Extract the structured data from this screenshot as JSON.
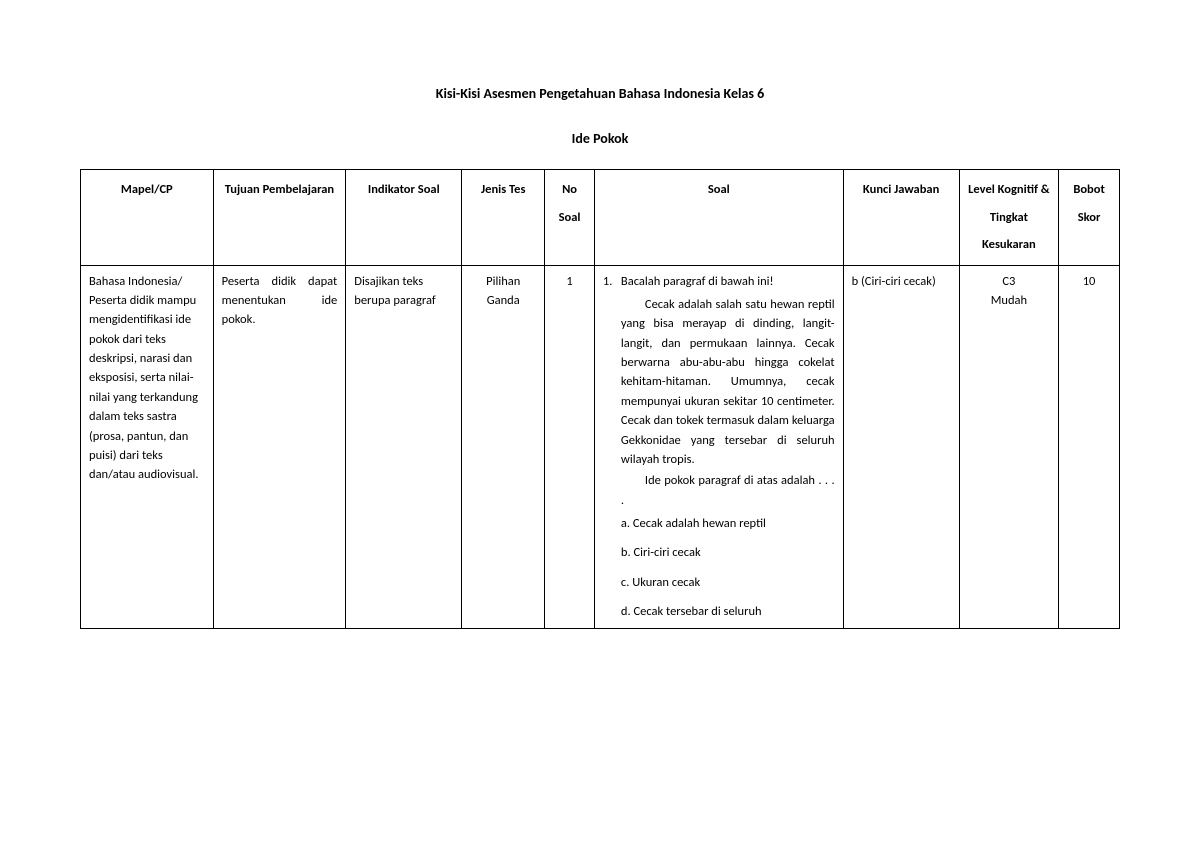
{
  "title": "Kisi-Kisi Asesmen Pengetahuan Bahasa Indonesia Kelas 6",
  "subtitle": "Ide Pokok",
  "headers": {
    "mapel": "Mapel/CP",
    "tujuan": "Tujuan Pembelajaran",
    "indikator": "Indikator Soal",
    "jenis": "Jenis Tes",
    "no": "No Soal",
    "soal": "Soal",
    "kunci": "Kunci Jawaban",
    "level": "Level Kognitif & Tingkat Kesukaran",
    "bobot": "Bobot Skor"
  },
  "row": {
    "mapel": "Bahasa Indonesia/ Peserta didik mampu mengidentifikasi ide pokok dari teks deskripsi, narasi dan eksposisi, serta nilai-nilai yang terkandung dalam teks sastra (prosa, pantun, dan puisi) dari teks dan/atau audiovisual.",
    "tujuan": "Peserta didik dapat menentukan ide pokok.",
    "indikator": "Disajikan teks berupa paragraf",
    "jenis": "Pilihan Ganda",
    "no": "1",
    "soal": {
      "num": "1.",
      "instruksi": "Bacalah paragraf di bawah ini!",
      "para1": "Cecak adalah salah satu hewan reptil yang bisa merayap di dinding, langit-langit, dan permukaan lainnya. Cecak berwarna abu-abu-abu hingga cokelat kehitam-hitaman. Umumnya, cecak mempunyai ukuran sekitar 10 centimeter. Cecak dan tokek termasuk dalam keluarga Gekkonidae yang tersebar di seluruh wilayah tropis.",
      "para2": "Ide pokok paragraf di atas adalah . . . .",
      "opts": {
        "a": "a.  Cecak adalah hewan reptil",
        "b": "b.  Ciri-ciri cecak",
        "c": "c.  Ukuran cecak",
        "d": "d.  Cecak tersebar di seluruh"
      }
    },
    "kunci": "b (Ciri-ciri cecak)",
    "level_code": "C3",
    "level_diff": "Mudah",
    "bobot": "10"
  }
}
